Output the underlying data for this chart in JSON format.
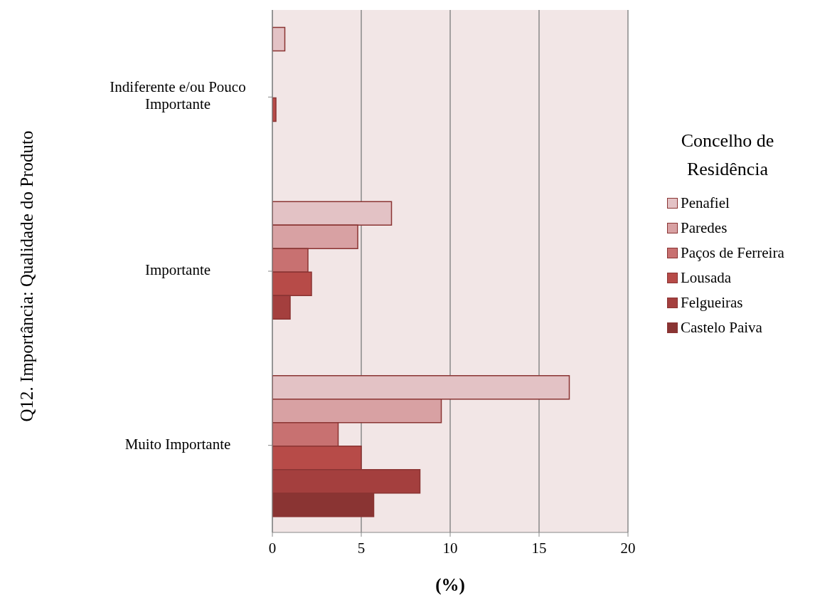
{
  "chart_data": {
    "type": "bar",
    "orientation": "horizontal",
    "xlabel": "(%)",
    "ylabel": "Q12. Importância: Qualidade do Produto",
    "legend_title": "Concelho de Residência",
    "categories": [
      "Indiferente e/ou Pouco Importante",
      "Importante",
      "Muito Importante"
    ],
    "series": [
      {
        "name": "Penafiel",
        "color": "#e3c2c5",
        "values": [
          0.7,
          6.7,
          16.7
        ]
      },
      {
        "name": "Paredes",
        "color": "#d8a1a3",
        "values": [
          null,
          4.8,
          9.5
        ]
      },
      {
        "name": "Paços de Ferreira",
        "color": "#c87171",
        "values": [
          null,
          2.0,
          3.7
        ]
      },
      {
        "name": "Lousada",
        "color": "#b74b48",
        "values": [
          0.2,
          2.2,
          5.0
        ]
      },
      {
        "name": "Felgueiras",
        "color": "#a43f3e",
        "values": [
          null,
          1.0,
          8.3
        ]
      },
      {
        "name": "Castelo Paiva",
        "color": "#8a3433",
        "values": [
          null,
          null,
          5.7
        ]
      }
    ],
    "xlim": [
      0,
      20
    ],
    "xticks": [
      0,
      5,
      10,
      15,
      20
    ],
    "grid": "x",
    "legend": "right"
  }
}
